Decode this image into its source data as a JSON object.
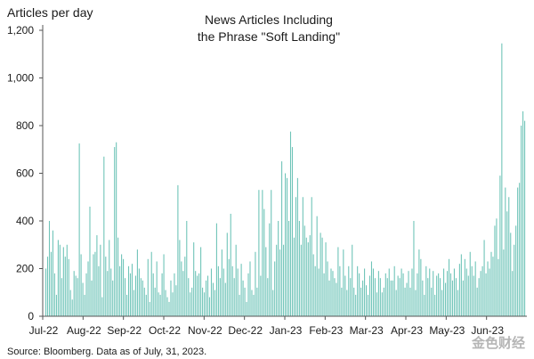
{
  "chart_data": {
    "type": "bar",
    "title_line1": "News Articles Including",
    "title_line2": "the Phrase \"Soft Landing\"",
    "ylabel": "Articles per day",
    "xlabel": "",
    "ylim": [
      0,
      1200
    ],
    "yticks": [
      "0",
      "200",
      "400",
      "600",
      "800",
      "1,000",
      "1,200"
    ],
    "ytick_values": [
      0,
      200,
      400,
      600,
      800,
      1000,
      1200
    ],
    "xticks": [
      "Jul-22",
      "Aug-22",
      "Sep-22",
      "Oct-22",
      "Nov-22",
      "Dec-22",
      "Jan-23",
      "Feb-23",
      "Mar-23",
      "Apr-23",
      "May-23",
      "Jun-23"
    ],
    "grid": false,
    "bar_color": "#6fc4b8",
    "series": [
      {
        "values": [
          200,
          250,
          400,
          270,
          360,
          180,
          90,
          320,
          300,
          160,
          290,
          250,
          300,
          240,
          110,
          70,
          190,
          170,
          160,
          725,
          260,
          140,
          90,
          180,
          230,
          460,
          150,
          260,
          270,
          340,
          210,
          300,
          80,
          670,
          250,
          190,
          320,
          200,
          150,
          710,
          730,
          330,
          210,
          260,
          240,
          160,
          90,
          210,
          180,
          220,
          110,
          170,
          280,
          200,
          160,
          150,
          120,
          90,
          240,
          60,
          270,
          180,
          120,
          230,
          100,
          90,
          180,
          260,
          110,
          80,
          60,
          150,
          100,
          180,
          130,
          550,
          320,
          230,
          190,
          250,
          400,
          160,
          100,
          120,
          310,
          190,
          170,
          180,
          290,
          120,
          100,
          150,
          170,
          80,
          200,
          140,
          110,
          390,
          210,
          160,
          280,
          200,
          140,
          350,
          240,
          430,
          210,
          160,
          300,
          200,
          90,
          220,
          150,
          120,
          60,
          180,
          230,
          110,
          90,
          270,
          120,
          530,
          170,
          530,
          450,
          290,
          160,
          390,
          530,
          110,
          230,
          300,
          400,
          280,
          650,
          300,
          600,
          580,
          400,
          775,
          710,
          330,
          500,
          580,
          400,
          300,
          500,
          380,
          330,
          310,
          340,
          500,
          260,
          210,
          420,
          200,
          350,
          330,
          180,
          310,
          230,
          150,
          200,
          190,
          160,
          140,
          290,
          210,
          120,
          280,
          170,
          110,
          210,
          160,
          300,
          120,
          90,
          210,
          180,
          120,
          150,
          200,
          130,
          90,
          170,
          230,
          200,
          160,
          100,
          190,
          160,
          100,
          120,
          180,
          160,
          200,
          150,
          150,
          210,
          110,
          170,
          160,
          200,
          180,
          120,
          140,
          190,
          120,
          200,
          400,
          110,
          180,
          280,
          240,
          150,
          90,
          210,
          160,
          200,
          120,
          190,
          90,
          170,
          180,
          160,
          110,
          200,
          140,
          190,
          240,
          180,
          150,
          200,
          160,
          110,
          220,
          260,
          150,
          240,
          200,
          170,
          270,
          210,
          170,
          230,
          120,
          160,
          190,
          210,
          320,
          180,
          230,
          200,
          270,
          250,
          380,
          410,
          240,
          590,
          1145,
          280,
          540,
          440,
          500,
          350,
          190,
          300,
          380,
          540,
          560,
          800,
          860,
          820
        ]
      }
    ],
    "annotations": []
  },
  "source": "Source: Bloomberg. Data as of July, 31, 2023.",
  "watermark": "金色财经"
}
